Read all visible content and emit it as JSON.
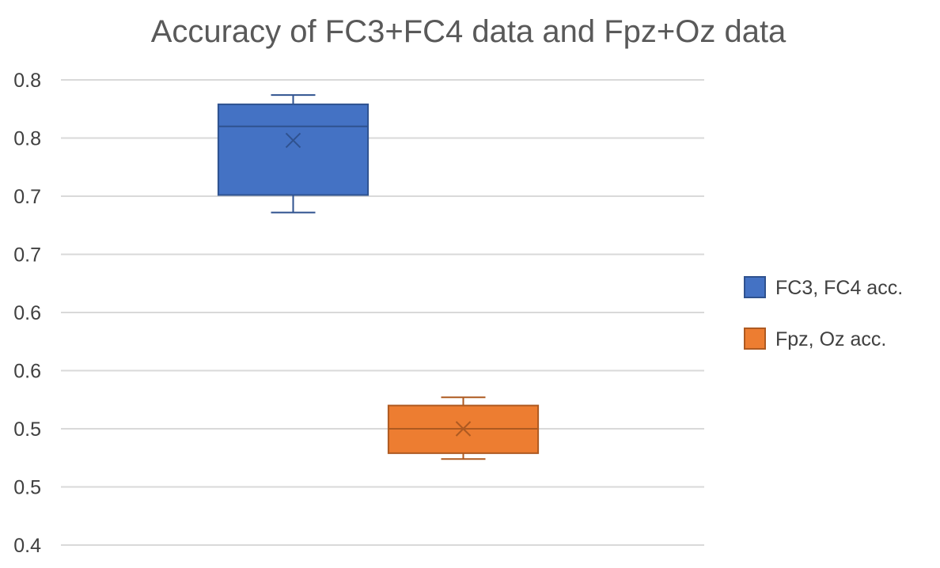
{
  "chart_data": {
    "type": "box",
    "title": "Accuracy of FC3+FC4 data and Fpz+Oz data",
    "xlabel": "",
    "ylabel": "",
    "ylim": [
      0.4,
      0.8
    ],
    "y_tick_values": [
      0.4,
      0.45,
      0.5,
      0.55,
      0.6,
      0.65,
      0.7,
      0.75,
      0.8
    ],
    "y_tick_labels": [
      "0.4",
      "0.5",
      "0.5",
      "0.6",
      "0.6",
      "0.7",
      "0.7",
      "0.8",
      "0.8"
    ],
    "grid": true,
    "legend_position": "right",
    "series": [
      {
        "name": "FC3, FC4 acc.",
        "color": "#4472C4",
        "border": "#2F528F",
        "min": 0.686,
        "q1": 0.701,
        "median": 0.76,
        "q3": 0.779,
        "max": 0.787,
        "mean": 0.748
      },
      {
        "name": "Fpz, Oz acc.",
        "color": "#ED7D31",
        "border": "#AE5A21",
        "min": 0.474,
        "q1": 0.479,
        "median": 0.5,
        "q3": 0.52,
        "max": 0.527,
        "mean": 0.5
      }
    ]
  }
}
